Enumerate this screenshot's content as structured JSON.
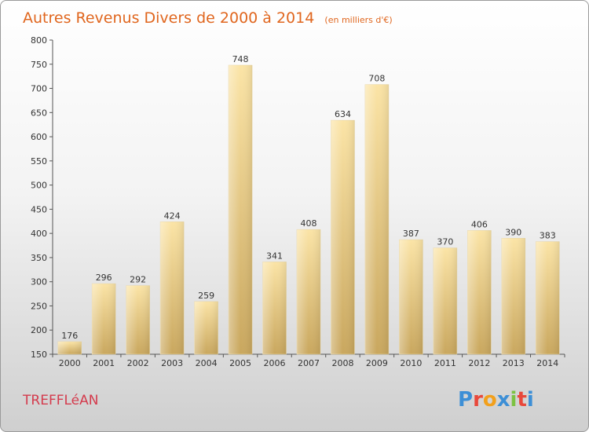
{
  "chart_data": {
    "type": "bar",
    "title": "Autres Revenus Divers de 2000 à 2014",
    "subtitle": "(en milliers d'€)",
    "categories": [
      "2000",
      "2001",
      "2002",
      "2003",
      "2004",
      "2005",
      "2006",
      "2007",
      "2008",
      "2009",
      "2010",
      "2011",
      "2012",
      "2013",
      "2014"
    ],
    "values": [
      176,
      296,
      292,
      424,
      259,
      748,
      341,
      408,
      634,
      708,
      387,
      370,
      406,
      390,
      383
    ],
    "ylim": [
      150,
      800
    ],
    "yticks": [
      150,
      200,
      250,
      300,
      350,
      400,
      450,
      500,
      550,
      600,
      650,
      700,
      750,
      800
    ],
    "grid": false,
    "colors": {
      "bar_light": "#fbe4a6",
      "bar_dark": "#c9a75e",
      "title": "#e0661e",
      "commune": "#d43b4d"
    }
  },
  "commune_label": "TREFFLéAN",
  "logo": {
    "text": "Proxiti",
    "letters": [
      {
        "ch": "P",
        "color": "#3d8fd6"
      },
      {
        "ch": "r",
        "color": "#e8483b"
      },
      {
        "ch": "o",
        "color": "#f2a01c"
      },
      {
        "ch": "x",
        "color": "#3d8fd6"
      },
      {
        "ch": "i",
        "color": "#7cc242"
      },
      {
        "ch": "t",
        "color": "#e8483b"
      },
      {
        "ch": "i",
        "color": "#3d8fd6"
      }
    ]
  }
}
